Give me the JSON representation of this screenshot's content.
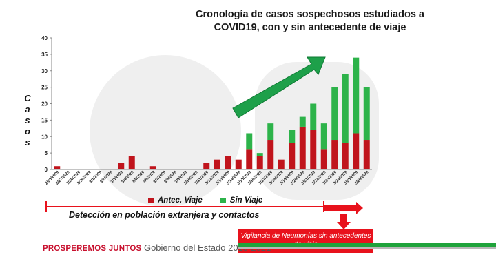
{
  "title": "Cronología de casos sospechosos estudiados a COVID19, con y sin antecedente de viaje",
  "ylabel_letters": [
    "C",
    "a",
    "s",
    "o",
    "s"
  ],
  "legend": {
    "antec_label": "Antec. Viaje",
    "sin_label": "Sin Viaje",
    "antec_color": "#c0141c",
    "sin_color": "#2db34a"
  },
  "annotations": {
    "detection": "Detección en población extranjera y contactos",
    "vigilancia": "Vigilancia de Neumonías sin antecedentes de viaje"
  },
  "footer": {
    "brand": "PROSPEREMOS JUNTOS",
    "government": "Gobierno del Estado 2015-2021"
  },
  "chart_data": {
    "type": "bar",
    "stacked": true,
    "title": "Cronología de casos sospechosos estudiados a COVID19, con y sin antecedente de viaje",
    "ylabel": "Casos",
    "ylim": [
      0,
      40
    ],
    "yticks": [
      0,
      5,
      10,
      15,
      20,
      25,
      30,
      35,
      40
    ],
    "categories": [
      "2/26/2020",
      "2/27/2020",
      "2/28/2020",
      "2/29/2020",
      "3/1/2020",
      "3/2/2020",
      "3/3/2020",
      "3/4/2020",
      "3/5/2020",
      "3/6/2020",
      "3/7/2020",
      "3/8/2020",
      "3/9/2020",
      "3/10/2020",
      "3/11/2020",
      "3/12/2020",
      "3/13/2020",
      "3/14/2020",
      "3/15/2020",
      "3/16/2020",
      "3/17/2020",
      "3/18/2020",
      "3/19/2020",
      "3/20/2020",
      "3/21/2020",
      "3/22/2020",
      "3/23/2020",
      "3/24/2020",
      "3/25/2020",
      "3/26/2020"
    ],
    "series": [
      {
        "name": "Antec. Viaje",
        "values": [
          1,
          0,
          0,
          0,
          0,
          0,
          2,
          4,
          0,
          1,
          0,
          0,
          0,
          0,
          2,
          3,
          4,
          3,
          6,
          4,
          9,
          3,
          8,
          13,
          12,
          6,
          9,
          8,
          11,
          9
        ]
      },
      {
        "name": "Sin Viaje",
        "values": [
          0,
          0,
          0,
          0,
          0,
          0,
          0,
          0,
          0,
          0,
          0,
          0,
          0,
          0,
          0,
          0,
          0,
          0,
          5,
          1,
          5,
          0,
          4,
          3,
          8,
          8,
          16,
          21,
          23,
          16
        ]
      }
    ],
    "legend_position": "bottom"
  }
}
